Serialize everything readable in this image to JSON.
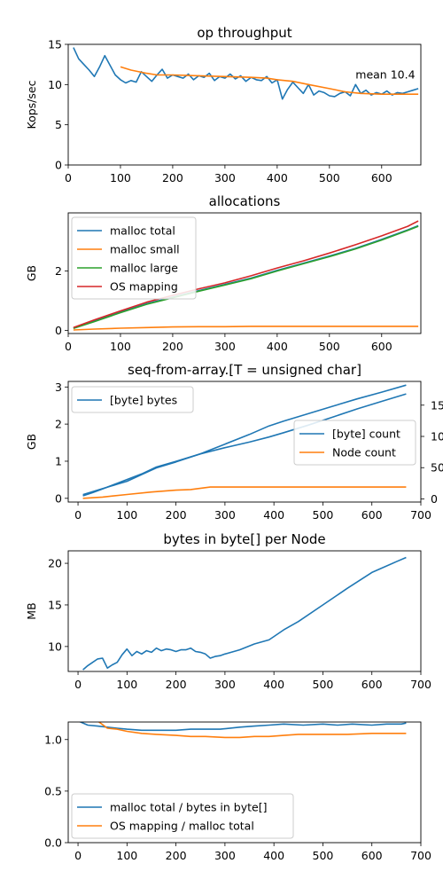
{
  "colors": {
    "blue": "#1f77b4",
    "orange": "#ff7f0e",
    "green": "#2ca02c",
    "red": "#d62728"
  },
  "chart_data": [
    {
      "type": "line",
      "title": "op throughput",
      "ylabel": "Kops/sec",
      "xlim": [
        0,
        675
      ],
      "ylim": [
        0,
        15
      ],
      "xticks": [
        0,
        100,
        200,
        300,
        400,
        500,
        600
      ],
      "yticks": [
        0,
        5,
        10,
        15
      ],
      "annotation": "mean 10.4",
      "series": [
        {
          "color": "blue",
          "x": [
            10,
            20,
            30,
            40,
            50,
            60,
            70,
            80,
            90,
            100,
            110,
            120,
            130,
            140,
            150,
            160,
            170,
            180,
            190,
            200,
            210,
            220,
            230,
            240,
            250,
            260,
            270,
            280,
            290,
            300,
            310,
            320,
            330,
            340,
            350,
            360,
            370,
            380,
            390,
            400,
            410,
            420,
            430,
            440,
            450,
            460,
            470,
            480,
            490,
            500,
            510,
            520,
            530,
            540,
            550,
            560,
            570,
            580,
            590,
            600,
            610,
            620,
            630,
            640,
            650,
            660,
            670
          ],
          "y": [
            14.6,
            13.2,
            12.5,
            11.8,
            11.0,
            12.2,
            13.6,
            12.4,
            11.2,
            10.6,
            10.2,
            10.5,
            10.3,
            11.6,
            11.0,
            10.4,
            11.2,
            11.9,
            10.8,
            11.2,
            11.0,
            10.8,
            11.3,
            10.6,
            11.1,
            10.9,
            11.4,
            10.5,
            11.0,
            10.8,
            11.3,
            10.7,
            11.1,
            10.4,
            10.9,
            10.6,
            10.5,
            11.0,
            10.2,
            10.6,
            8.2,
            9.4,
            10.3,
            9.6,
            8.9,
            10.0,
            8.7,
            9.2,
            9.0,
            8.6,
            8.5,
            8.9,
            9.1,
            8.6,
            10.0,
            8.9,
            9.3,
            8.7,
            9.0,
            8.8,
            9.2,
            8.7,
            9.0,
            8.9,
            9.1,
            9.3,
            9.5
          ]
        },
        {
          "color": "orange",
          "x": [
            100,
            120,
            150,
            170,
            200,
            250,
            300,
            350,
            380,
            400,
            430,
            460,
            500,
            530,
            560,
            600,
            630,
            650,
            670
          ],
          "y": [
            12.2,
            11.8,
            11.4,
            11.2,
            11.2,
            11.1,
            11.0,
            10.9,
            10.8,
            10.6,
            10.4,
            10.0,
            9.5,
            9.1,
            8.9,
            8.8,
            8.8,
            8.8,
            8.8
          ]
        }
      ]
    },
    {
      "type": "line",
      "title": "allocations",
      "ylabel": "GB",
      "xlim": [
        0,
        675
      ],
      "ylim": [
        -0.1,
        3.95
      ],
      "xticks": [
        0,
        100,
        200,
        300,
        400,
        500,
        600
      ],
      "yticks": [
        0,
        2
      ],
      "legend": [
        "malloc total",
        "malloc small",
        "malloc large",
        "OS mapping"
      ],
      "series": [
        {
          "name": "malloc total",
          "color": "blue",
          "x": [
            10,
            50,
            100,
            150,
            200,
            250,
            300,
            350,
            400,
            450,
            500,
            550,
            600,
            650,
            670
          ],
          "y": [
            0.08,
            0.32,
            0.62,
            0.9,
            1.12,
            1.34,
            1.55,
            1.76,
            2.02,
            2.26,
            2.5,
            2.76,
            3.06,
            3.38,
            3.52
          ]
        },
        {
          "name": "malloc small",
          "color": "orange",
          "x": [
            10,
            50,
            100,
            150,
            200,
            250,
            300,
            350,
            400,
            450,
            500,
            550,
            600,
            650,
            670
          ],
          "y": [
            0.02,
            0.05,
            0.08,
            0.1,
            0.12,
            0.13,
            0.13,
            0.14,
            0.14,
            0.14,
            0.14,
            0.14,
            0.14,
            0.14,
            0.14
          ]
        },
        {
          "name": "malloc large",
          "color": "green",
          "x": [
            10,
            50,
            100,
            150,
            200,
            250,
            300,
            350,
            400,
            450,
            500,
            550,
            600,
            650,
            670
          ],
          "y": [
            0.07,
            0.3,
            0.6,
            0.88,
            1.1,
            1.32,
            1.53,
            1.74,
            2.0,
            2.24,
            2.48,
            2.74,
            3.04,
            3.36,
            3.5
          ]
        },
        {
          "name": "OS mapping",
          "color": "red",
          "x": [
            10,
            50,
            100,
            150,
            200,
            250,
            300,
            350,
            400,
            450,
            500,
            550,
            600,
            650,
            670
          ],
          "y": [
            0.1,
            0.36,
            0.66,
            0.95,
            1.18,
            1.4,
            1.6,
            1.84,
            2.1,
            2.34,
            2.6,
            2.88,
            3.18,
            3.5,
            3.68
          ]
        }
      ]
    },
    {
      "type": "line",
      "title": "seq-from-array.[T = unsigned char]",
      "ylabel": "GB",
      "xlim": [
        -20,
        700
      ],
      "ylim": [
        -0.1,
        3.15
      ],
      "y2lim": [
        -5,
        188
      ],
      "xticks": [
        0,
        100,
        200,
        300,
        400,
        500,
        600,
        700
      ],
      "yticks": [
        0,
        1,
        2,
        3
      ],
      "y2ticks": [
        0,
        50,
        100,
        150
      ],
      "legend_left": [
        "[byte] bytes"
      ],
      "legend_right": [
        "[byte] count",
        "Node count"
      ],
      "series": [
        {
          "name": "[byte] bytes",
          "color": "blue",
          "axis": "left",
          "x": [
            10,
            30,
            50,
            80,
            100,
            130,
            160,
            200,
            250,
            300,
            350,
            390,
            420,
            470,
            520,
            570,
            620,
            670
          ],
          "y": [
            0.1,
            0.18,
            0.26,
            0.38,
            0.46,
            0.64,
            0.82,
            0.98,
            1.2,
            1.46,
            1.72,
            1.95,
            2.08,
            2.28,
            2.48,
            2.68,
            2.86,
            3.05
          ]
        },
        {
          "name": "[byte] count",
          "color": "blue",
          "axis": "right",
          "x": [
            10,
            30,
            50,
            80,
            100,
            130,
            160,
            200,
            250,
            300,
            350,
            390,
            420,
            470,
            520,
            570,
            620,
            670
          ],
          "y": [
            5,
            10,
            16,
            25,
            31,
            40,
            51,
            60,
            72,
            82,
            91,
            99,
            106,
            118,
            131,
            144,
            156,
            168
          ]
        },
        {
          "name": "Node count",
          "color": "orange",
          "axis": "right",
          "x": [
            10,
            50,
            100,
            150,
            200,
            230,
            270,
            300,
            350,
            400,
            450,
            500,
            550,
            600,
            670
          ],
          "y": [
            1,
            3,
            7,
            11,
            14,
            15,
            19,
            19,
            19,
            19,
            19,
            19,
            19,
            19,
            19
          ]
        }
      ]
    },
    {
      "type": "line",
      "title": "bytes in byte[] per Node",
      "ylabel": "MB",
      "xlim": [
        -20,
        700
      ],
      "ylim": [
        7.0,
        21.5
      ],
      "xticks": [
        0,
        100,
        200,
        300,
        400,
        500,
        600,
        700
      ],
      "yticks": [
        10,
        15,
        20
      ],
      "series": [
        {
          "color": "blue",
          "x": [
            10,
            20,
            30,
            40,
            50,
            60,
            70,
            80,
            90,
            100,
            110,
            120,
            130,
            140,
            150,
            160,
            170,
            180,
            190,
            200,
            210,
            220,
            230,
            240,
            250,
            260,
            270,
            280,
            290,
            300,
            330,
            360,
            390,
            400,
            420,
            450,
            500,
            550,
            600,
            650,
            670
          ],
          "y": [
            7.2,
            7.7,
            8.1,
            8.5,
            8.6,
            7.4,
            7.8,
            8.1,
            9.0,
            9.7,
            8.9,
            9.4,
            9.1,
            9.5,
            9.3,
            9.8,
            9.5,
            9.7,
            9.6,
            9.4,
            9.6,
            9.6,
            9.8,
            9.4,
            9.3,
            9.1,
            8.6,
            8.8,
            8.9,
            9.1,
            9.6,
            10.3,
            10.8,
            11.2,
            12.0,
            13.0,
            15.0,
            17.0,
            18.9,
            20.2,
            20.7
          ]
        }
      ]
    },
    {
      "type": "line",
      "title": "",
      "xlim": [
        -20,
        700
      ],
      "ylim": [
        0.0,
        1.17
      ],
      "xticks": [
        0,
        100,
        200,
        300,
        400,
        500,
        600,
        700
      ],
      "yticks": [
        0.0,
        0.5,
        1.0
      ],
      "legend": [
        "malloc total / bytes in byte[]",
        "OS mapping / malloc total"
      ],
      "series": [
        {
          "name": "malloc total / bytes in byte[]",
          "color": "blue",
          "x": [
            0,
            20,
            40,
            60,
            80,
            100,
            130,
            160,
            200,
            230,
            260,
            290,
            330,
            360,
            390,
            420,
            460,
            500,
            530,
            560,
            600,
            630,
            660,
            670
          ],
          "y": [
            1.18,
            1.14,
            1.13,
            1.12,
            1.11,
            1.1,
            1.09,
            1.09,
            1.09,
            1.1,
            1.1,
            1.1,
            1.12,
            1.13,
            1.14,
            1.15,
            1.14,
            1.15,
            1.14,
            1.15,
            1.14,
            1.15,
            1.15,
            1.16
          ]
        },
        {
          "name": "OS mapping / malloc total",
          "color": "orange",
          "x": [
            40,
            60,
            80,
            100,
            130,
            160,
            200,
            230,
            260,
            300,
            330,
            360,
            390,
            420,
            450,
            500,
            550,
            600,
            650,
            670
          ],
          "y": [
            1.18,
            1.11,
            1.1,
            1.08,
            1.06,
            1.05,
            1.04,
            1.03,
            1.03,
            1.02,
            1.02,
            1.03,
            1.03,
            1.04,
            1.05,
            1.05,
            1.05,
            1.06,
            1.06,
            1.06
          ]
        }
      ]
    }
  ]
}
